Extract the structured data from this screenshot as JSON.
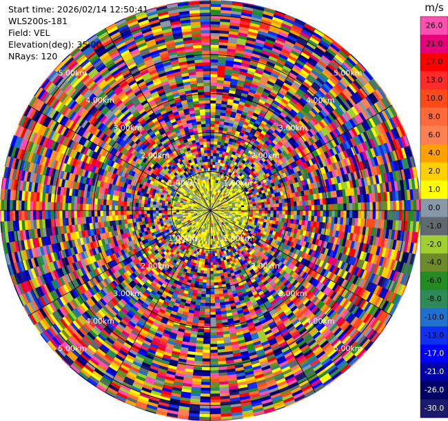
{
  "header": {
    "start_time": "Start time: 2026/02/14 12:50:41",
    "instrument": "WLS200s-181",
    "field": "Field: VEL",
    "elevation": "Elevation(deg): 35.00",
    "nrays": "NRays: 120"
  },
  "chart_data": {
    "type": "heatmap",
    "projection": "polar PPI",
    "field": "VEL",
    "units": "m/s",
    "elevation_deg": 35.0,
    "n_rays": 120,
    "max_range_km": 5.4,
    "range_rings_km": [
      1,
      2,
      3,
      4,
      5
    ],
    "ring_labels": [
      "1.00km",
      "2.00km",
      "3.00km",
      "4.00km",
      "5.00km"
    ],
    "spokes_deg": [
      0,
      30,
      60,
      90,
      120,
      150,
      180,
      210,
      240,
      270,
      300,
      330
    ],
    "colorbar": {
      "label": "m/s",
      "tick_labels": [
        "26.0",
        "21.0",
        "17.0",
        "13.0",
        "10.0",
        "8.0",
        "6.0",
        "4.0",
        "2.0",
        "1.0",
        "0.0",
        "-1.0",
        "-2.0",
        "-4.0",
        "-6.0",
        "-8.0",
        "-10.0",
        "-13.0",
        "-17.0",
        "-21.0",
        "-26.0",
        "-30.0"
      ],
      "colors": [
        "#ff4fb0",
        "#e8007a",
        "#ff0000",
        "#ff2a2a",
        "#ff4a1a",
        "#ff6a3a",
        "#ff8050",
        "#ffa000",
        "#ffd000",
        "#ffff00",
        "#8898a8",
        "#606870",
        "#a0d030",
        "#6e8b2a",
        "#228b22",
        "#2e8b57",
        "#2070d0",
        "#1030f0",
        "#0000ff",
        "#0000aa",
        "#000066",
        "#1a1a6e"
      ]
    },
    "near_field": {
      "range_km": 1.2,
      "dominant_values_ms": [
        -2.0,
        0.0,
        1.0
      ],
      "note": "near-range gates mostly yellow/green/grey"
    },
    "far_field": {
      "dominant_values": "mixed / noisy across full scale"
    }
  }
}
